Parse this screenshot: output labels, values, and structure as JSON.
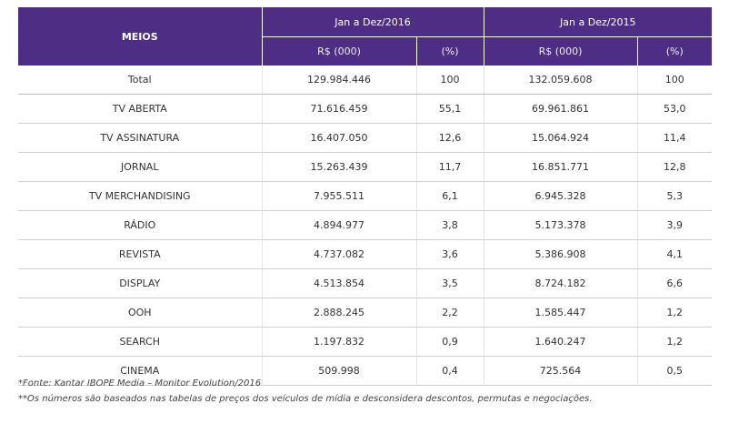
{
  "table": {
    "header_meios": "MEIOS",
    "years": [
      "Jan a Dez/2016",
      "Jan a Dez/2015"
    ],
    "subheaders": [
      "R$ (000)",
      "(%)",
      "R$ (000)",
      "(%)"
    ],
    "rows": [
      {
        "meio": "Total",
        "v2016": "129.984.446",
        "p2016": "100",
        "v2015": "132.059.608",
        "p2015": "100"
      },
      {
        "meio": "TV ABERTA",
        "v2016": "71.616.459",
        "p2016": "55,1",
        "v2015": "69.961.861",
        "p2015": "53,0"
      },
      {
        "meio": "TV ASSINATURA",
        "v2016": "16.407.050",
        "p2016": "12,6",
        "v2015": "15.064.924",
        "p2015": "11,4"
      },
      {
        "meio": "JORNAL",
        "v2016": "15.263.439",
        "p2016": "11,7",
        "v2015": "16.851.771",
        "p2015": "12,8"
      },
      {
        "meio": "TV MERCHANDISING",
        "v2016": "7.955.511",
        "p2016": "6,1",
        "v2015": "6.945.328",
        "p2015": "5,3"
      },
      {
        "meio": "RÁDIO",
        "v2016": "4.894.977",
        "p2016": "3,8",
        "v2015": "5.173.378",
        "p2015": "3,9"
      },
      {
        "meio": "REVISTA",
        "v2016": "4.737.082",
        "p2016": "3,6",
        "v2015": "5.386.908",
        "p2015": "4,1"
      },
      {
        "meio": "DISPLAY",
        "v2016": "4.513.854",
        "p2016": "3,5",
        "v2015": "8.724.182",
        "p2015": "6,6"
      },
      {
        "meio": "OOH",
        "v2016": "2.888.245",
        "p2016": "2,2",
        "v2015": "1.585.447",
        "p2015": "1,2"
      },
      {
        "meio": "SEARCH",
        "v2016": "1.197.832",
        "p2016": "0,9",
        "v2015": "1.640.247",
        "p2015": "1,2"
      },
      {
        "meio": "CINEMA",
        "v2016": "509.998",
        "p2016": "0,4",
        "v2015": "725.564",
        "p2015": "0,5"
      }
    ]
  },
  "notes": {
    "source": "*Fonte: Kantar IBOPE Media – Monitor Evolution/2016",
    "disclaimer": "**Os números são baseados nas tabelas de preços dos veículos de mídia e desconsidera descontos, permutas e negociações."
  },
  "colors": {
    "header_bg": "#4e2d85",
    "row_border": "#cfcfcf"
  }
}
